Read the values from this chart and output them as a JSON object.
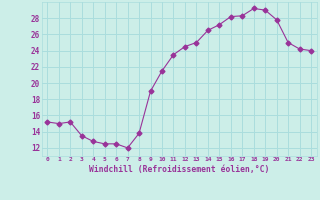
{
  "x": [
    0,
    1,
    2,
    3,
    4,
    5,
    6,
    7,
    8,
    9,
    10,
    11,
    12,
    13,
    14,
    15,
    16,
    17,
    18,
    19,
    20,
    21,
    22,
    23
  ],
  "y": [
    15.2,
    15.0,
    15.2,
    13.5,
    12.8,
    12.5,
    12.5,
    12.0,
    13.8,
    19.0,
    21.5,
    23.5,
    24.5,
    25.0,
    26.5,
    27.2,
    28.2,
    28.3,
    29.2,
    29.0,
    27.8,
    25.0,
    24.2,
    24.0
  ],
  "line_color": "#993399",
  "marker": "D",
  "marker_size": 2.5,
  "bg_color": "#cceee8",
  "grid_color": "#aadddd",
  "xlabel": "Windchill (Refroidissement éolien,°C)",
  "xlabel_color": "#993399",
  "tick_color": "#993399",
  "ylim": [
    11,
    30
  ],
  "yticks": [
    12,
    14,
    16,
    18,
    20,
    22,
    24,
    26,
    28
  ],
  "xlim": [
    -0.5,
    23.5
  ]
}
